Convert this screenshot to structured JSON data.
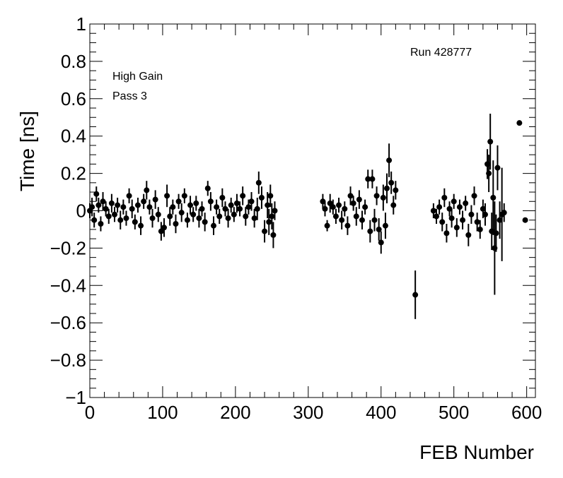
{
  "chart_data": {
    "type": "scatter",
    "xlabel": "FEB Number",
    "ylabel": "Time [ns]",
    "annotations": [
      "Run 428777",
      "High Gain",
      "Pass 3"
    ],
    "color": "#000000",
    "xlim": [
      0,
      612
    ],
    "ylim": [
      -1,
      1
    ],
    "xticks": [
      0,
      100,
      200,
      300,
      400,
      500,
      600
    ],
    "yticks": [
      {
        "value": -1,
        "label": "−1"
      },
      {
        "value": -0.8,
        "label": "−0.8"
      },
      {
        "value": -0.6,
        "label": "−0.6"
      },
      {
        "value": -0.4,
        "label": "−0.4"
      },
      {
        "value": -0.2,
        "label": "−0.2"
      },
      0,
      0.2,
      0.4,
      0.6,
      0.8,
      1
    ],
    "xminorticks": [
      20,
      40,
      60,
      80,
      120,
      140,
      160,
      180,
      220,
      240,
      260,
      280,
      320,
      340,
      360,
      380,
      420,
      440,
      460,
      480,
      520,
      540,
      560,
      580
    ],
    "yminorticks": [
      -0.95,
      -0.9,
      -0.85,
      -0.75,
      -0.7,
      -0.65,
      -0.55,
      -0.5,
      -0.45,
      -0.35,
      -0.3,
      -0.25,
      -0.15,
      -0.1,
      -0.05,
      0.05,
      0.1,
      0.15,
      0.25,
      0.3,
      0.35,
      0.45,
      0.5,
      0.55,
      0.65,
      0.7,
      0.75,
      0.85,
      0.9,
      0.95
    ],
    "x": [
      0,
      3,
      6,
      9,
      12,
      15,
      18,
      22,
      26,
      30,
      34,
      38,
      42,
      46,
      50,
      54,
      58,
      62,
      66,
      70,
      74,
      78,
      82,
      86,
      90,
      94,
      98,
      102,
      106,
      110,
      114,
      118,
      122,
      126,
      130,
      134,
      138,
      142,
      146,
      150,
      154,
      158,
      162,
      166,
      170,
      174,
      178,
      182,
      186,
      190,
      194,
      198,
      202,
      206,
      210,
      214,
      218,
      222,
      226,
      230,
      232,
      236,
      240,
      244,
      246,
      248,
      250,
      252,
      254,
      320,
      323,
      326,
      330,
      334,
      338,
      342,
      346,
      350,
      354,
      358,
      362,
      366,
      370,
      374,
      378,
      382,
      385,
      388,
      391,
      394,
      397,
      400,
      403,
      406,
      408,
      411,
      414,
      417,
      420,
      447,
      472,
      476,
      480,
      484,
      487,
      490,
      494,
      497,
      500,
      504,
      508,
      512,
      516,
      520,
      524,
      528,
      532,
      536,
      540,
      543,
      546,
      548,
      550,
      552,
      554,
      556,
      558,
      560,
      563,
      566,
      569,
      590,
      598
    ],
    "values": [
      0,
      0.02,
      -0.05,
      0.09,
      0.03,
      -0.07,
      0.05,
      0.01,
      -0.03,
      0.04,
      -0.02,
      0.03,
      -0.05,
      0.02,
      -0.04,
      0.08,
      0.01,
      -0.06,
      0.03,
      -0.08,
      0.05,
      0.11,
      0.02,
      -0.04,
      0.06,
      -0.02,
      -0.11,
      -0.09,
      0.08,
      -0.03,
      0.02,
      -0.07,
      0.05,
      -0.01,
      0.08,
      -0.05,
      0.03,
      -0.02,
      0.04,
      -0.04,
      0.01,
      -0.06,
      0.12,
      0.05,
      -0.08,
      0.02,
      -0.03,
      0.07,
      0.01,
      -0.04,
      0.03,
      -0.02,
      0.04,
      0.01,
      0.08,
      -0.03,
      0.02,
      0.05,
      -0.04,
      0.01,
      0.15,
      0.07,
      -0.11,
      0.03,
      -0.06,
      0.08,
      -0.03,
      -0.13,
      0,
      0.05,
      0.01,
      -0.08,
      0.04,
      0.02,
      -0.03,
      0.03,
      -0.05,
      0.01,
      -0.08,
      0.08,
      0.04,
      -0.03,
      0.06,
      -0.05,
      0.02,
      0.17,
      -0.11,
      0.17,
      -0.05,
      0.08,
      -0.1,
      -0.17,
      0.07,
      -0.08,
      0.12,
      0.27,
      0.15,
      0.03,
      0.11,
      -0.45,
      0,
      -0.03,
      0.02,
      -0.06,
      0.07,
      -0.12,
      0.01,
      -0.04,
      0.05,
      -0.09,
      0.02,
      -0.05,
      0.04,
      -0.13,
      -0.02,
      0.08,
      -0.06,
      -0.1,
      0.01,
      -0.02,
      0.25,
      0.2,
      0.37,
      -0.11,
      0.07,
      -0.2,
      -0.12,
      0.23,
      -0.05,
      -0.02,
      -0.01,
      0.47,
      -0.05
    ],
    "errors": [
      0.04,
      0.05,
      0.04,
      0.04,
      0.04,
      0.04,
      0.05,
      0.04,
      0.04,
      0.05,
      0.04,
      0.04,
      0.05,
      0.04,
      0.04,
      0.04,
      0.05,
      0.04,
      0.04,
      0.05,
      0.04,
      0.05,
      0.04,
      0.05,
      0.05,
      0.04,
      0.05,
      0.05,
      0.06,
      0.05,
      0.04,
      0.05,
      0.04,
      0.05,
      0.04,
      0.04,
      0.05,
      0.04,
      0.04,
      0.05,
      0.04,
      0.05,
      0.04,
      0.05,
      0.05,
      0.04,
      0.04,
      0.05,
      0.04,
      0.05,
      0.04,
      0.04,
      0.05,
      0.04,
      0.05,
      0.05,
      0.04,
      0.05,
      0.05,
      0.06,
      0.06,
      0.06,
      0.06,
      0.07,
      0.07,
      0.06,
      0.07,
      0.07,
      0.05,
      0.04,
      0.04,
      0.03,
      0.05,
      0.04,
      0.04,
      0.04,
      0.05,
      0.04,
      0.05,
      0.05,
      0.04,
      0.05,
      0.05,
      0.05,
      0.04,
      0.05,
      0.06,
      0.05,
      0.06,
      0.05,
      0.06,
      0.06,
      0.07,
      0.07,
      0.08,
      0.09,
      0.06,
      0.05,
      0.05,
      0.13,
      0.04,
      0.04,
      0.04,
      0.05,
      0.05,
      0.05,
      0.04,
      0.05,
      0.04,
      0.05,
      0.04,
      0.05,
      0.04,
      0.06,
      0.05,
      0.05,
      0.05,
      0.05,
      0.05,
      0.06,
      0.08,
      0.1,
      0.15,
      0.1,
      0.2,
      0.25,
      0.1,
      0.12,
      0.1,
      0.25,
      0.05,
      0,
      0
    ]
  }
}
